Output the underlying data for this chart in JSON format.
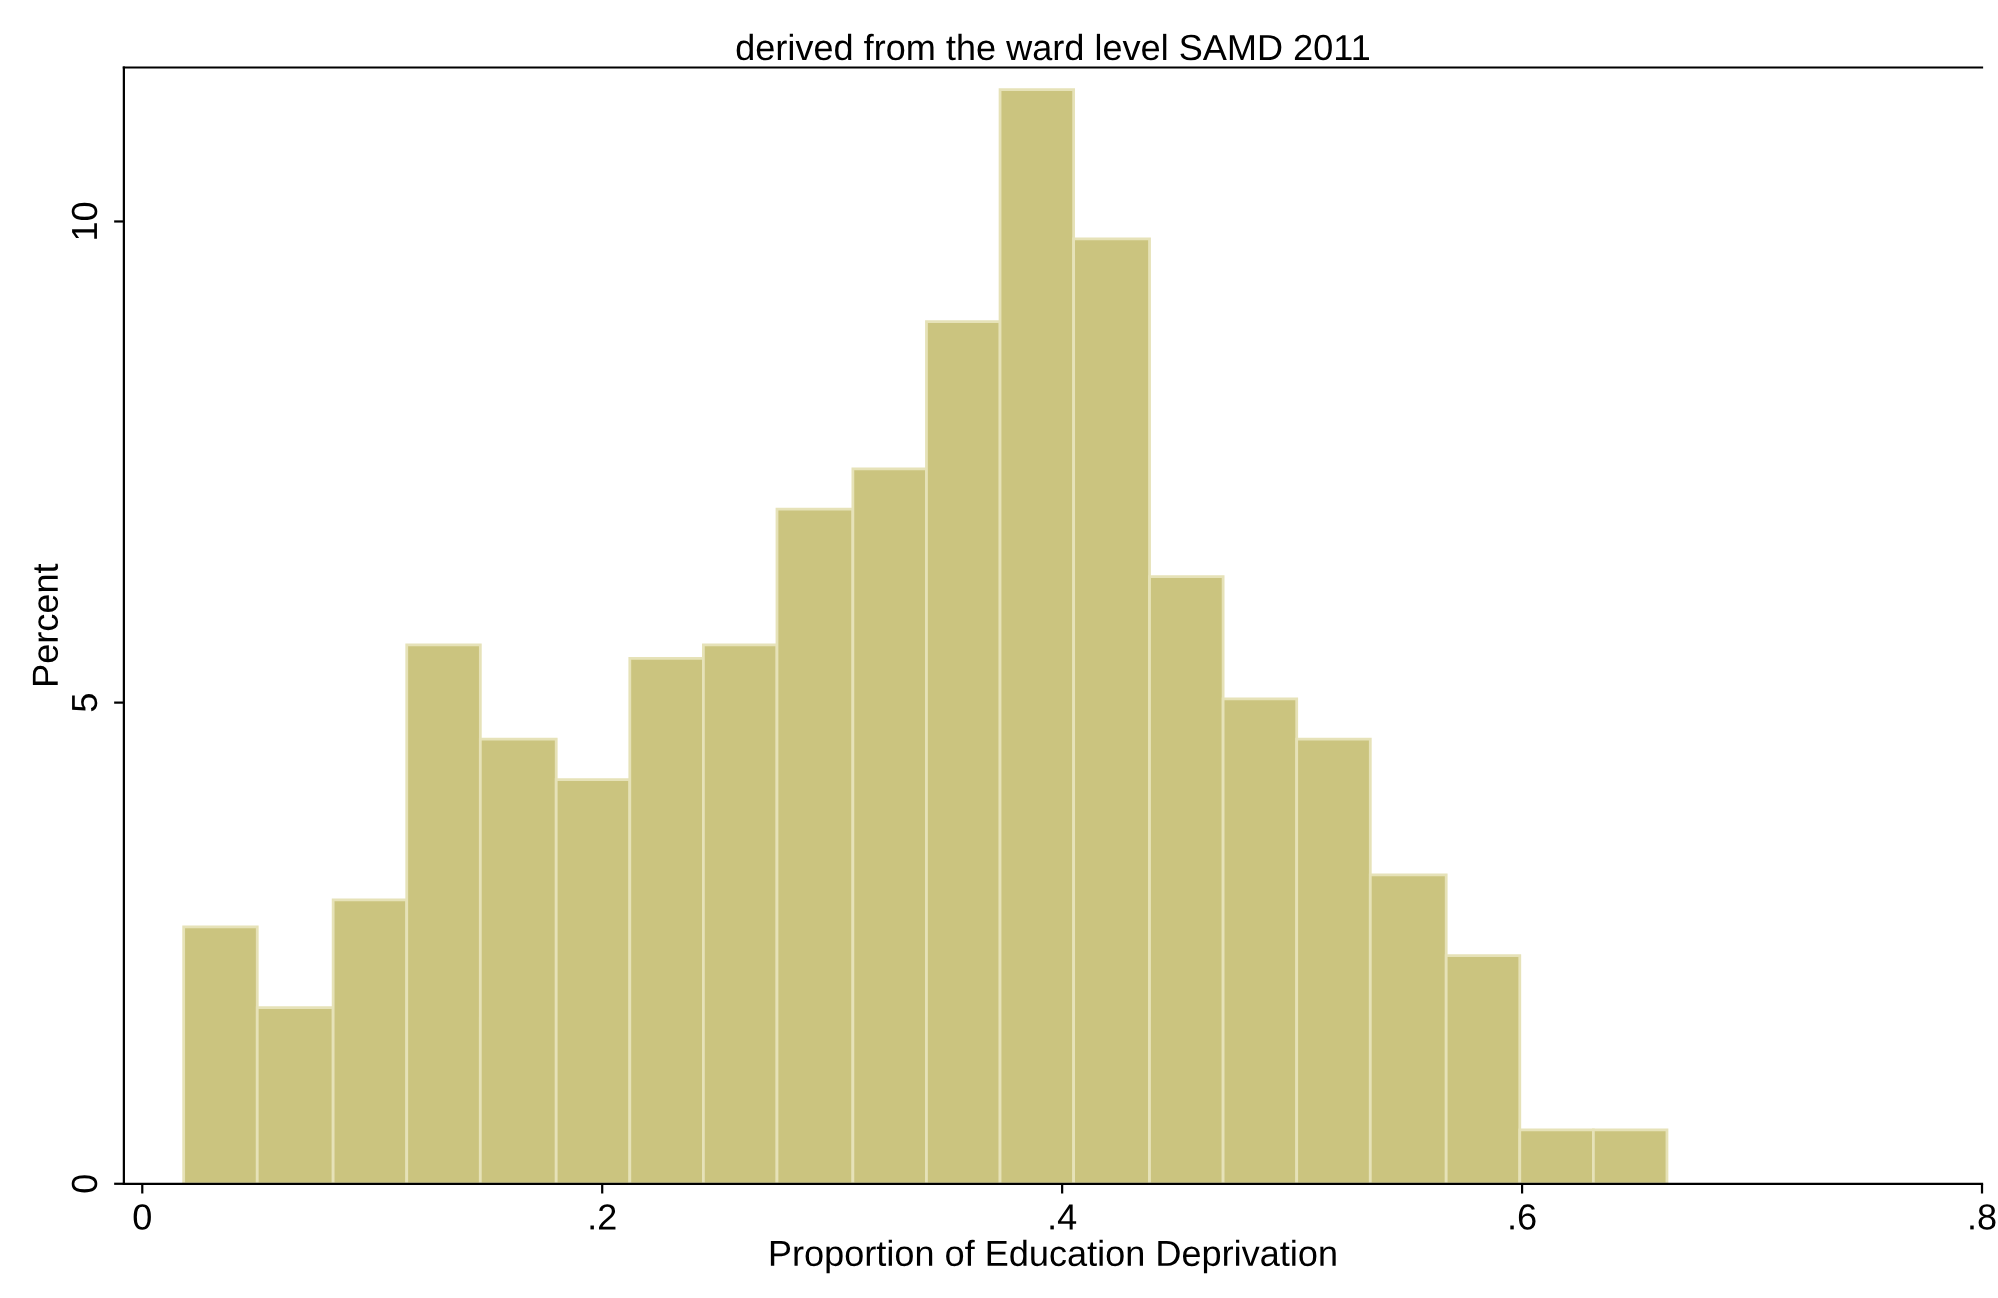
{
  "chart_data": {
    "type": "histogram",
    "title": "derived from the ward level SAMD 2011",
    "xlabel": "Proportion of Education Deprivation",
    "ylabel": "Percent",
    "bins": [
      0.018,
      0.05,
      0.083,
      0.115,
      0.147,
      0.18,
      0.212,
      0.244,
      0.276,
      0.309,
      0.341,
      0.373,
      0.405,
      0.438,
      0.47,
      0.502,
      0.534,
      0.567,
      0.599,
      0.631,
      0.663
    ],
    "values": [
      2.67,
      1.83,
      2.95,
      5.6,
      4.62,
      4.2,
      5.46,
      5.6,
      7.01,
      7.43,
      8.96,
      11.37,
      9.82,
      6.31,
      5.04,
      4.62,
      3.21,
      2.37,
      0.56,
      0.56
    ],
    "color": "#cbc47f",
    "xlim": [
      -0.008,
      0.8
    ],
    "ylim": [
      0,
      11.6
    ],
    "xticks": [
      0,
      {
        "value": 0.2,
        "label": ".2"
      },
      {
        "value": 0.4,
        "label": ".4"
      },
      {
        "value": 0.6,
        "label": ".6"
      },
      {
        "value": 0.8,
        "label": ".8"
      }
    ],
    "yticks": [
      0,
      5,
      10
    ],
    "grid": false,
    "legend": false
  }
}
